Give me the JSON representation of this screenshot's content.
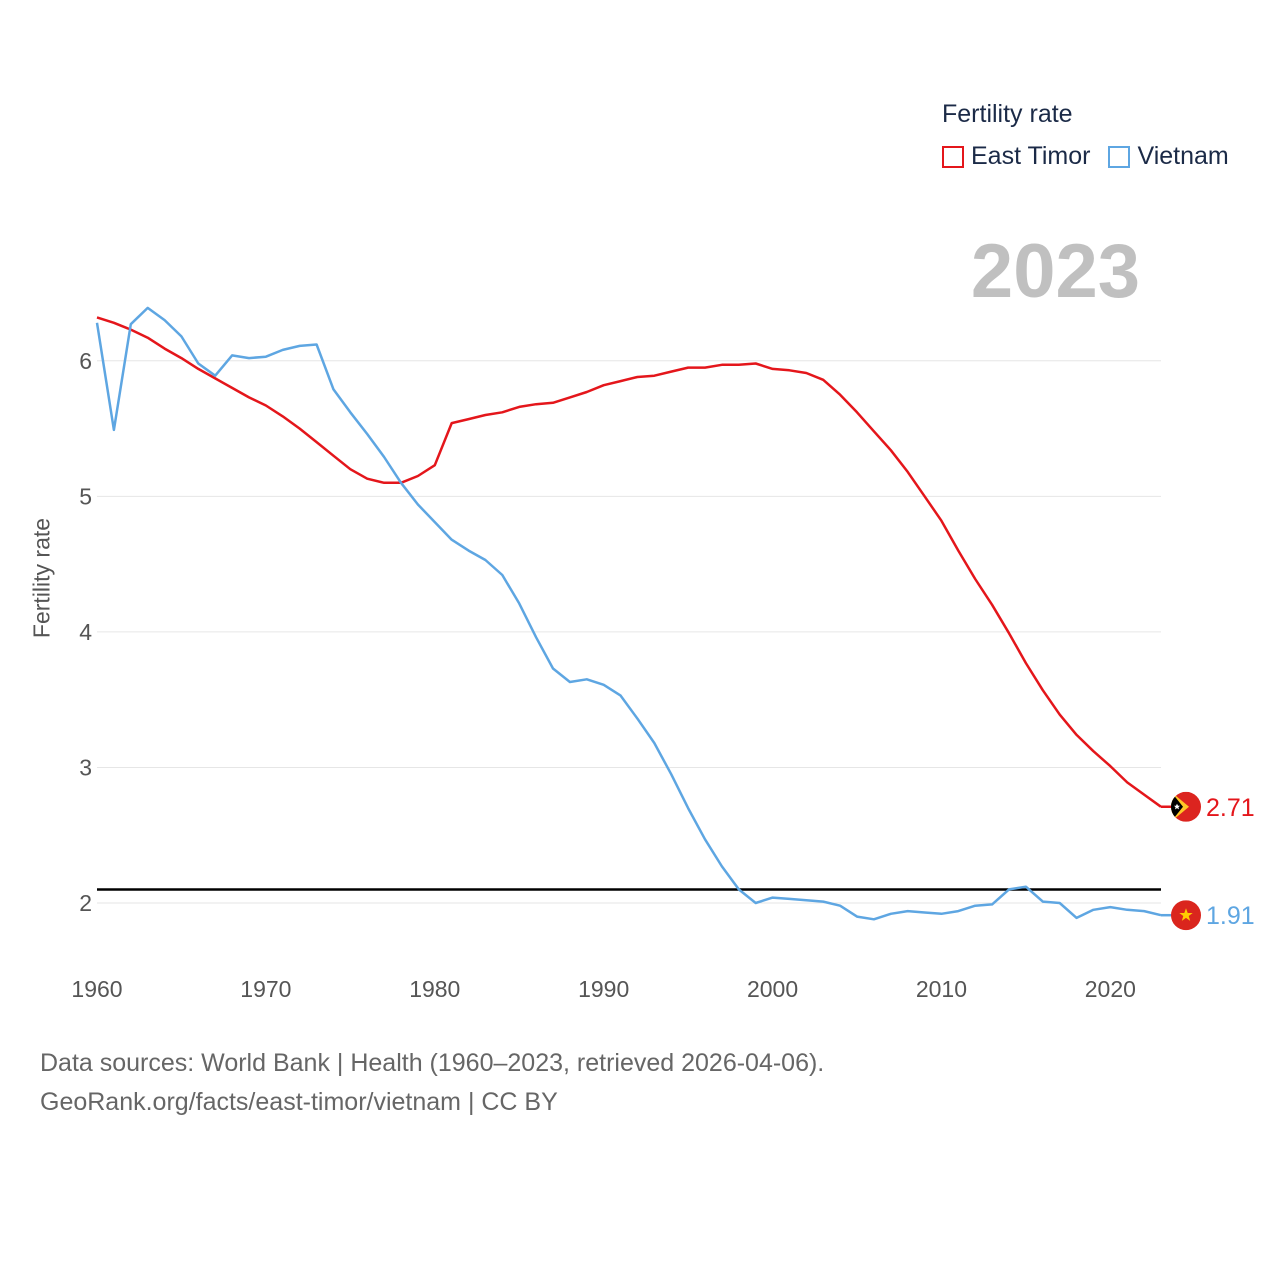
{
  "chart_data": {
    "type": "line",
    "title": "Fertility rate",
    "highlight_year": "2023",
    "ylabel": "Fertility rate",
    "xlabel": "",
    "xlim": [
      1960,
      2023
    ],
    "ylim": [
      1.55,
      6.95
    ],
    "x_ticks": [
      1960,
      1970,
      1980,
      1990,
      2000,
      2010,
      2020
    ],
    "y_ticks": [
      2,
      3,
      4,
      5,
      6
    ],
    "reference_line": {
      "value": 2.1,
      "color": "#000000"
    },
    "x": [
      1960,
      1961,
      1962,
      1963,
      1964,
      1965,
      1966,
      1967,
      1968,
      1969,
      1970,
      1971,
      1972,
      1973,
      1974,
      1975,
      1976,
      1977,
      1978,
      1979,
      1980,
      1981,
      1982,
      1983,
      1984,
      1985,
      1986,
      1987,
      1988,
      1989,
      1990,
      1991,
      1992,
      1993,
      1994,
      1995,
      1996,
      1997,
      1998,
      1999,
      2000,
      2001,
      2002,
      2003,
      2004,
      2005,
      2006,
      2007,
      2008,
      2009,
      2010,
      2011,
      2012,
      2013,
      2014,
      2015,
      2016,
      2017,
      2018,
      2019,
      2020,
      2021,
      2022,
      2023
    ],
    "series": [
      {
        "name": "East Timor",
        "color": "#e4161b",
        "end_label": "2.71",
        "values": [
          6.32,
          6.28,
          6.23,
          6.17,
          6.09,
          6.02,
          5.94,
          5.87,
          5.8,
          5.73,
          5.67,
          5.59,
          5.5,
          5.4,
          5.3,
          5.2,
          5.13,
          5.1,
          5.1,
          5.15,
          5.23,
          5.54,
          5.57,
          5.6,
          5.62,
          5.66,
          5.68,
          5.69,
          5.73,
          5.77,
          5.82,
          5.85,
          5.88,
          5.89,
          5.92,
          5.95,
          5.95,
          5.97,
          5.97,
          5.98,
          5.94,
          5.93,
          5.91,
          5.86,
          5.75,
          5.62,
          5.48,
          5.34,
          5.18,
          5.0,
          4.82,
          4.6,
          4.39,
          4.2,
          3.99,
          3.77,
          3.57,
          3.39,
          3.24,
          3.12,
          3.01,
          2.89,
          2.8,
          2.71
        ]
      },
      {
        "name": "Vietnam",
        "color": "#5ea6e2",
        "end_label": "1.91",
        "values": [
          6.28,
          5.49,
          6.27,
          6.39,
          6.3,
          6.18,
          5.98,
          5.89,
          6.04,
          6.02,
          6.03,
          6.08,
          6.11,
          6.12,
          5.79,
          5.62,
          5.46,
          5.29,
          5.1,
          4.94,
          4.81,
          4.68,
          4.6,
          4.53,
          4.42,
          4.21,
          3.96,
          3.73,
          3.63,
          3.65,
          3.61,
          3.53,
          3.36,
          3.18,
          2.95,
          2.7,
          2.47,
          2.27,
          2.1,
          2.0,
          2.04,
          2.03,
          2.02,
          2.01,
          1.98,
          1.9,
          1.88,
          1.92,
          1.94,
          1.93,
          1.92,
          1.94,
          1.98,
          1.99,
          2.1,
          2.12,
          2.01,
          2.0,
          1.89,
          1.95,
          1.97,
          1.95,
          1.94,
          1.91
        ]
      }
    ]
  },
  "footer": {
    "line1": "Data sources: World Bank | Health (1960–2023, retrieved 2026-04-06).",
    "line2": "GeoRank.org/facts/east-timor/vietnam | CC BY"
  }
}
